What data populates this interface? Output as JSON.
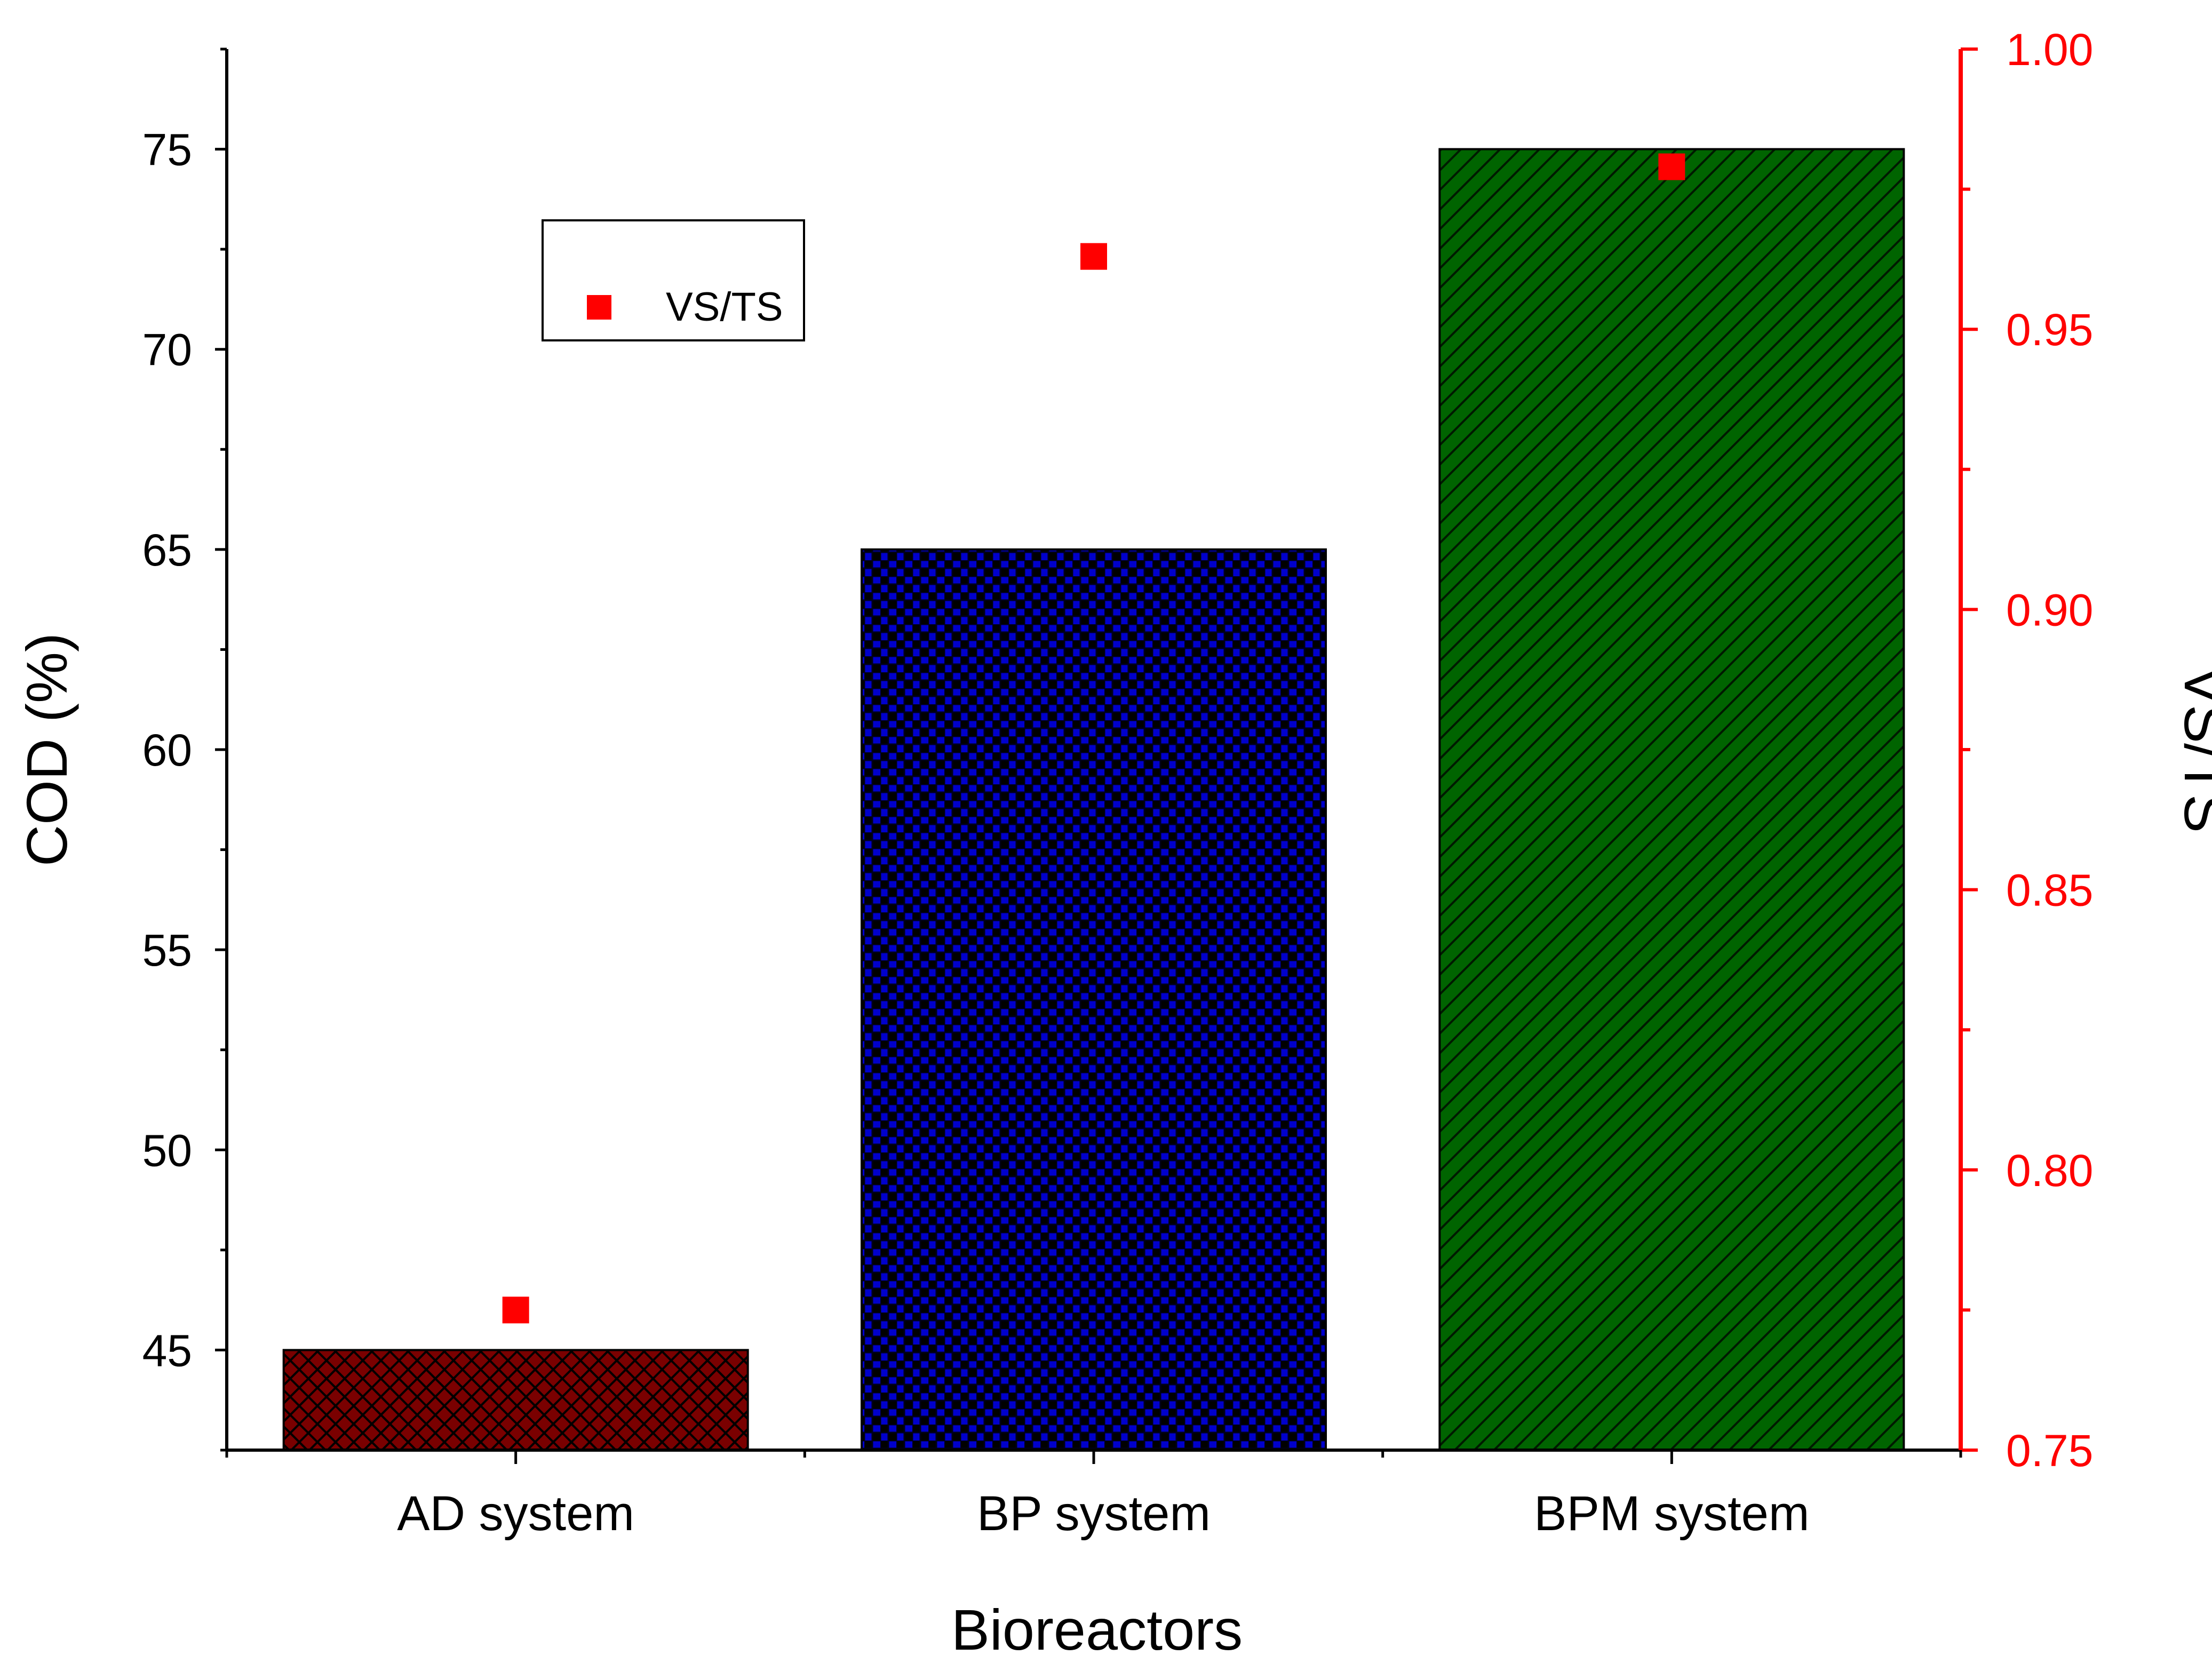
{
  "chart_data": {
    "type": "bar",
    "categories": [
      "AD system",
      "BP system",
      "BPM system"
    ],
    "series": [
      {
        "name": "COD",
        "axis": "left",
        "type": "bar",
        "values": [
          45,
          65,
          75
        ],
        "colors": [
          "#7a0000",
          "#0000cc",
          "#006400"
        ],
        "patterns": [
          "crosshatch",
          "checker",
          "diagonal"
        ]
      },
      {
        "name": "VS/TS",
        "axis": "right",
        "type": "scatter",
        "values": [
          0.775,
          0.963,
          0.979
        ],
        "color": "#ff0000",
        "marker": "square"
      }
    ],
    "xlabel": "Bioreactors",
    "ylabel": "COD (%)",
    "ylabel_right": "VS/TS",
    "ylim": [
      42.5,
      77.5
    ],
    "ylim_right": [
      0.75,
      1.0
    ],
    "yticks": [
      "45",
      "50",
      "55",
      "60",
      "65",
      "70",
      "75"
    ],
    "yticks_right": [
      "0.75",
      "0.80",
      "0.85",
      "0.90",
      "0.95",
      "1.00"
    ],
    "legend": {
      "position": "top-left",
      "entries": [
        "VS/TS"
      ]
    },
    "grid": false,
    "right_axis_color": "#ff0000"
  }
}
